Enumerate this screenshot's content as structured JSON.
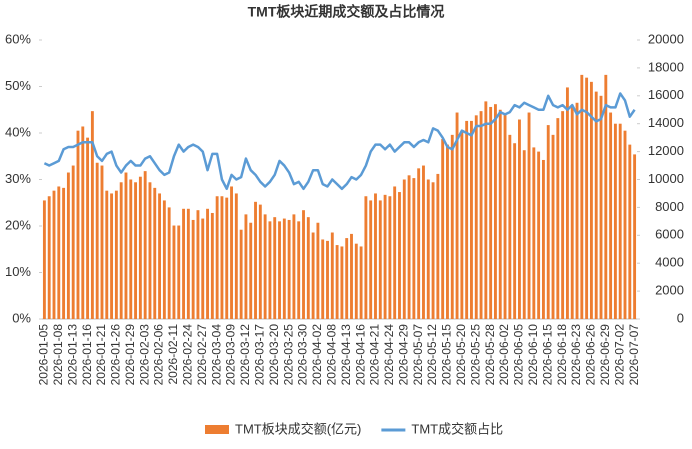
{
  "chart_data": {
    "type": "bar_line",
    "title": "TMT板块近期成交额及占比情况",
    "categories": [
      "2026-01-05",
      null,
      null,
      "2026-01-08",
      null,
      null,
      "2026-01-13",
      null,
      null,
      "2026-01-16",
      null,
      null,
      "2026-01-21",
      null,
      null,
      "2026-01-26",
      null,
      null,
      "2026-01-29",
      null,
      null,
      "2026-02-03",
      null,
      null,
      "2026-02-06",
      null,
      null,
      "2026-02-11",
      null,
      null,
      "2026-02-24",
      null,
      null,
      "2026-02-27",
      null,
      null,
      "2026-03-04",
      null,
      null,
      "2026-03-09",
      null,
      null,
      "2026-03-12",
      null,
      null,
      "2026-03-17",
      null,
      null,
      "2026-03-20",
      null,
      null,
      "2026-03-25",
      null,
      null,
      "2026-03-30",
      null,
      null,
      "2026-04-02",
      null,
      null,
      "2026-04-08",
      null,
      null,
      "2026-04-13",
      null,
      null,
      "2026-04-16",
      null,
      null,
      "2026-04-21",
      null,
      null,
      "2026-04-24",
      null,
      null,
      "2026-04-29",
      null,
      null,
      "2026-05-07",
      null,
      null,
      "2026-05-12",
      null,
      null,
      "2026-05-15",
      null,
      null,
      "2026-05-20",
      null,
      null,
      "2026-05-25",
      null,
      null,
      "2026-05-28",
      null,
      null,
      "2026-06-02",
      null,
      null,
      "2026-06-05",
      null,
      null,
      "2026-06-10",
      null,
      null,
      "2026-06-15",
      null,
      null,
      "2026-06-18",
      null,
      null,
      "2026-06-23",
      null,
      null,
      "2026-06-26",
      null,
      null,
      "2026-06-29",
      null,
      null,
      "2026-07-02",
      null,
      null,
      "2026-07-07"
    ],
    "series": [
      {
        "name": "TMT板块成交额(亿元)",
        "color": "#ED7D31",
        "axis": "y2",
        "kind": "bar",
        "values": [
          8500,
          8800,
          9200,
          9500,
          9400,
          10500,
          11000,
          13500,
          13800,
          13000,
          14900,
          11200,
          11000,
          9200,
          9000,
          9200,
          9800,
          10500,
          10000,
          9800,
          10200,
          10600,
          9800,
          9400,
          9000,
          8500,
          8000,
          6700,
          6700,
          7900,
          7900,
          7100,
          7800,
          7200,
          7900,
          7600,
          8800,
          8800,
          8700,
          9500,
          9000,
          6400,
          7500,
          6900,
          8400,
          8200,
          7500,
          7000,
          7300,
          7000,
          7200,
          7100,
          7500,
          7000,
          7800,
          7300,
          6200,
          6900,
          5700,
          5600,
          6200,
          5300,
          5200,
          5800,
          6100,
          5400,
          5200,
          8800,
          8500,
          9000,
          8500,
          8900,
          8800,
          9500,
          9100,
          10000,
          10300,
          10100,
          10800,
          11000,
          10000,
          9800,
          10400,
          12900,
          12500,
          13200,
          14800,
          13500,
          14200,
          14200,
          14600,
          14900,
          15600,
          15200,
          15400,
          15000,
          14700,
          13200,
          12600,
          14300,
          12100,
          14800,
          12300,
          12000,
          11400,
          13900,
          13200,
          14400,
          14900,
          16600,
          15200,
          15500,
          17500,
          17300,
          17000,
          16300,
          16000,
          17500,
          14800,
          14000,
          14000,
          13500,
          12500,
          11800
        ]
      },
      {
        "name": "TMT成交额占比",
        "color": "#5B9BD5",
        "axis": "y",
        "kind": "line",
        "values": [
          33.5,
          33,
          33.5,
          34,
          36.5,
          37,
          37,
          37.5,
          38,
          38,
          38,
          35,
          34,
          35.5,
          36,
          33,
          31.5,
          33,
          34,
          33,
          33,
          34.5,
          35,
          33.5,
          32,
          31,
          31.5,
          35,
          37.5,
          36,
          37,
          37.5,
          37,
          36,
          32,
          35.5,
          35.5,
          30,
          28,
          31,
          30,
          30.5,
          34.5,
          32,
          31,
          29.5,
          28.5,
          29.5,
          31,
          34,
          33,
          31.5,
          29,
          29.5,
          28,
          29.5,
          32,
          32,
          29,
          28.5,
          30,
          29,
          28,
          29,
          30.5,
          30,
          31,
          33,
          36,
          37.5,
          37.5,
          36.5,
          37.5,
          36,
          37,
          38,
          38,
          37,
          38,
          38.5,
          38,
          41,
          40.5,
          39,
          37,
          36.5,
          38.5,
          40.5,
          40,
          39.5,
          41.5,
          41.5,
          42,
          42,
          43,
          44.5,
          44,
          44.5,
          46,
          45.5,
          46.5,
          46,
          45.5,
          45,
          45,
          48,
          46,
          45.5,
          46,
          45,
          46,
          44,
          45,
          44.5,
          43.5,
          42.5,
          43,
          46,
          45.5,
          45.5,
          48.5,
          47,
          43.5,
          45
        ]
      }
    ],
    "ylim": [
      0,
      60
    ],
    "yticks": [
      {
        "value": 0,
        "label": "0%"
      },
      {
        "value": 10,
        "label": "10%"
      },
      {
        "value": 20,
        "label": "20%"
      },
      {
        "value": 30,
        "label": "30%"
      },
      {
        "value": 40,
        "label": "40%"
      },
      {
        "value": 50,
        "label": "50%"
      },
      {
        "value": 60,
        "label": "60%"
      }
    ],
    "y2lim": [
      0,
      20000
    ],
    "y2ticks": [
      0,
      2000,
      4000,
      6000,
      8000,
      10000,
      12000,
      14000,
      16000,
      18000,
      20000
    ],
    "legend": "bottom"
  }
}
